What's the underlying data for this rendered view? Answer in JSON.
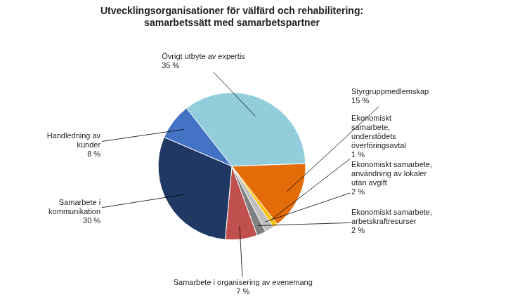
{
  "chart_data": {
    "type": "pie",
    "title": "Utvecklingsorganisationer för välfärd och rehabilitering:\nsamarbetssätt med samarbetspartner",
    "categories": [
      "Övrigt utbyte av expertis\n35 %",
      "Styrgruppmedlemskap\n15 %",
      "Ekonomiskt\nsamarbete,\nunderstödets\növerföringsavtal\n1 %",
      "Ekonomiskt samarbete,\nanvändning av lokaler\nutan avgift\n2 %",
      "Ekonomiskt samarbete,\narbetskraftresurser\n2 %",
      "Samarbete i organisering av evenemang\n7 %",
      "Samarbete i\nkommunikation\n30 %",
      "Handledning av\nkunder\n8 %"
    ],
    "values": [
      35,
      15,
      1,
      2,
      2,
      7,
      30,
      8
    ],
    "colors": [
      "#92CDDC",
      "#E36C09",
      "#FFC000",
      "#BFBFBF",
      "#808080",
      "#C0504D",
      "#1F3864",
      "#4472C4"
    ]
  }
}
